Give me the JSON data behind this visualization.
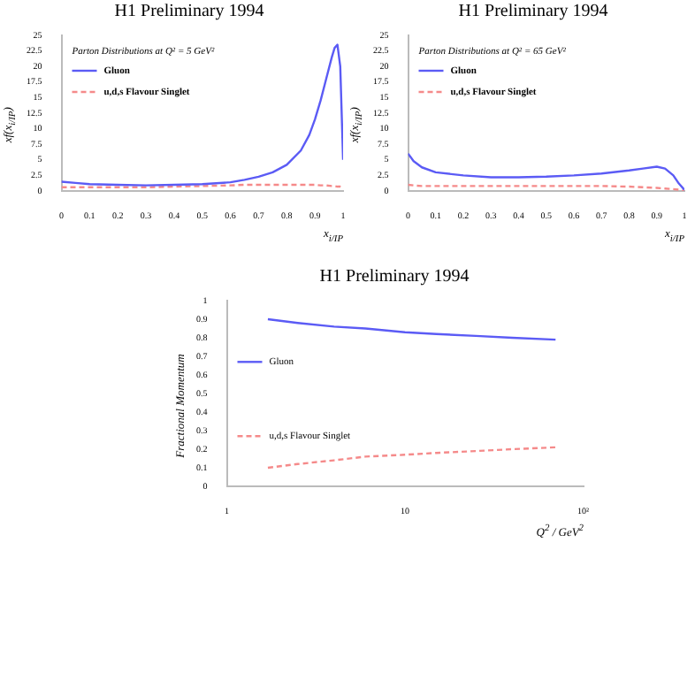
{
  "chart_data": [
    {
      "type": "line",
      "title": "H1 Preliminary 1994",
      "xlabel": "x$_{i/IP}$",
      "ylabel": "xf(x$_{i/IP}$)",
      "legend_title": "Parton Distributions at Q² = 5 GeV²",
      "legend": "top left",
      "xlim": [
        0,
        1
      ],
      "xticks": [
        0,
        0.1,
        0.2,
        0.3,
        0.4,
        0.5,
        0.6,
        0.7,
        0.8,
        0.9,
        1
      ],
      "ylim": [
        0,
        25
      ],
      "yticks": [
        0,
        2.5,
        5,
        7.5,
        10,
        12.5,
        15,
        17.5,
        20,
        22.5,
        25
      ],
      "x": [
        0,
        0.05,
        0.1,
        0.2,
        0.3,
        0.4,
        0.5,
        0.6,
        0.65,
        0.7,
        0.75,
        0.8,
        0.85,
        0.88,
        0.9,
        0.92,
        0.94,
        0.96,
        0.97,
        0.98,
        0.99,
        1
      ],
      "series": [
        {
          "name": "Gluon",
          "color": "#5b5bf5",
          "line_style": "solid",
          "values": [
            1.5,
            1.3,
            1.1,
            1,
            0.9,
            1,
            1.1,
            1.4,
            1.8,
            2.3,
            3,
            4.2,
            6.5,
            9,
            11.5,
            14.5,
            18,
            21.5,
            23,
            23.5,
            20,
            5
          ]
        },
        {
          "name": "u,d,s Flavour Singlet",
          "color": "#f58a8a",
          "line_style": "dashed",
          "values": [
            0.6,
            0.6,
            0.6,
            0.6,
            0.6,
            0.7,
            0.8,
            0.9,
            1,
            1,
            1,
            1,
            1,
            1,
            1,
            0.9,
            0.9,
            0.8,
            0.8,
            0.7,
            0.7,
            0.6
          ]
        }
      ]
    },
    {
      "type": "line",
      "title": "H1 Preliminary 1994",
      "xlabel": "x$_{i/IP}$",
      "ylabel": "xf(x$_{i/IP}$)",
      "legend_title": "Parton Distributions at Q² = 65 GeV²",
      "legend": "top left",
      "xlim": [
        0,
        1
      ],
      "xticks": [
        0,
        0.1,
        0.2,
        0.3,
        0.4,
        0.5,
        0.6,
        0.7,
        0.8,
        0.9,
        1
      ],
      "ylim": [
        0,
        25
      ],
      "yticks": [
        0,
        2.5,
        5,
        7.5,
        10,
        12.5,
        15,
        17.5,
        20,
        22.5,
        25
      ],
      "x": [
        0,
        0.02,
        0.05,
        0.1,
        0.2,
        0.3,
        0.4,
        0.5,
        0.6,
        0.7,
        0.8,
        0.85,
        0.9,
        0.93,
        0.96,
        0.98,
        1
      ],
      "series": [
        {
          "name": "Gluon",
          "color": "#5b5bf5",
          "line_style": "solid",
          "values": [
            6,
            4.8,
            3.8,
            3,
            2.5,
            2.2,
            2.2,
            2.3,
            2.5,
            2.8,
            3.3,
            3.6,
            3.9,
            3.6,
            2.5,
            1.2,
            0.2
          ]
        },
        {
          "name": "u,d,s Flavour Singlet",
          "color": "#f58a8a",
          "line_style": "dashed",
          "values": [
            1,
            0.9,
            0.8,
            0.8,
            0.8,
            0.8,
            0.8,
            0.8,
            0.8,
            0.8,
            0.7,
            0.6,
            0.5,
            0.4,
            0.3,
            0.2,
            0
          ]
        }
      ]
    },
    {
      "type": "line",
      "title": "H1 Preliminary 1994",
      "xlabel": "Q$^{2}$ / GeV$^{2}$",
      "ylabel": "Fractional Momentum",
      "legend": "left",
      "log": "x",
      "xlim": [
        1,
        100
      ],
      "xticks": [
        1,
        10,
        {
          "value": 100,
          "label": "10²"
        }
      ],
      "ylim": [
        0,
        1
      ],
      "yticks": [
        0,
        0.1,
        0.2,
        0.3,
        0.4,
        0.5,
        0.6,
        0.7,
        0.8,
        0.9,
        1
      ],
      "x": [
        1.7,
        2.5,
        4,
        6,
        10,
        15,
        25,
        40,
        70
      ],
      "series": [
        {
          "name": "Gluon",
          "color": "#5b5bf5",
          "line_style": "solid",
          "values": [
            0.9,
            0.88,
            0.86,
            0.85,
            0.83,
            0.82,
            0.81,
            0.8,
            0.79
          ]
        },
        {
          "name": "u,d,s Flavour Singlet",
          "color": "#f58a8a",
          "line_style": "dashed",
          "values": [
            0.1,
            0.12,
            0.14,
            0.16,
            0.17,
            0.18,
            0.19,
            0.2,
            0.21
          ]
        }
      ]
    }
  ]
}
